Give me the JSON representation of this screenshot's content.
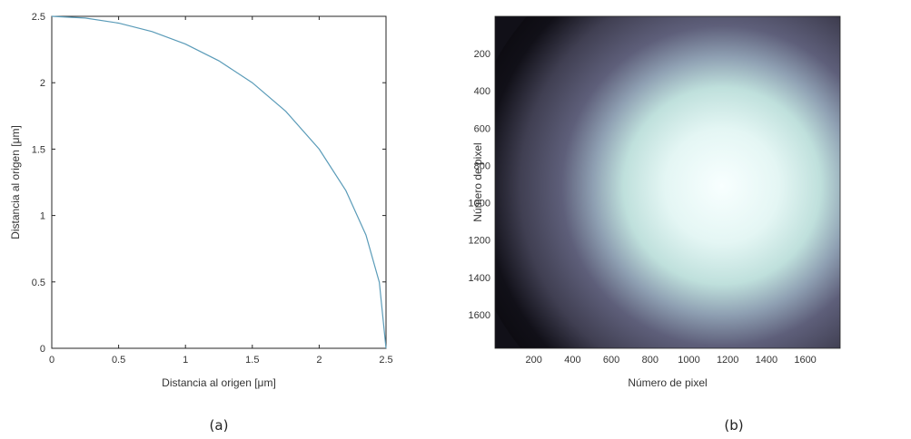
{
  "chart_data": [
    {
      "type": "line",
      "caption": "(a)",
      "xlabel": "Distancia al origen [μm]",
      "ylabel": "Distancia al origen [μm]",
      "xlim": [
        0,
        2.5
      ],
      "ylim": [
        0,
        2.5
      ],
      "xticks": [
        "0",
        "0.5",
        "1",
        "1.5",
        "2",
        "2.5"
      ],
      "yticks": [
        "0",
        "0.5",
        "1",
        "1.5",
        "2",
        "2.5"
      ],
      "grid": false,
      "line_color": "#5a9bb8",
      "series": [
        {
          "x": [
            0,
            0.25,
            0.5,
            0.75,
            1.0,
            1.25,
            1.5,
            1.75,
            2.0,
            2.2,
            2.35,
            2.45,
            2.5
          ],
          "y": [
            2.5,
            2.487,
            2.449,
            2.385,
            2.291,
            2.165,
            2.0,
            1.785,
            1.5,
            1.187,
            0.853,
            0.497,
            0
          ]
        }
      ]
    },
    {
      "type": "heatmap",
      "caption": "(b)",
      "xlabel": "Número de pixel",
      "ylabel": "Número de pixel",
      "xlim": [
        0,
        1780
      ],
      "ylim": [
        1780,
        0
      ],
      "xticks": [
        "200",
        "400",
        "600",
        "800",
        "1000",
        "1200",
        "1400",
        "1600"
      ],
      "yticks": [
        "200",
        "400",
        "600",
        "800",
        "1000",
        "1200",
        "1400",
        "1600"
      ],
      "colormap": "bone",
      "center": [
        900,
        910
      ],
      "description_values": {
        "peak_intensity": 1.0,
        "dark_ring_radius_px": 1000
      }
    }
  ]
}
